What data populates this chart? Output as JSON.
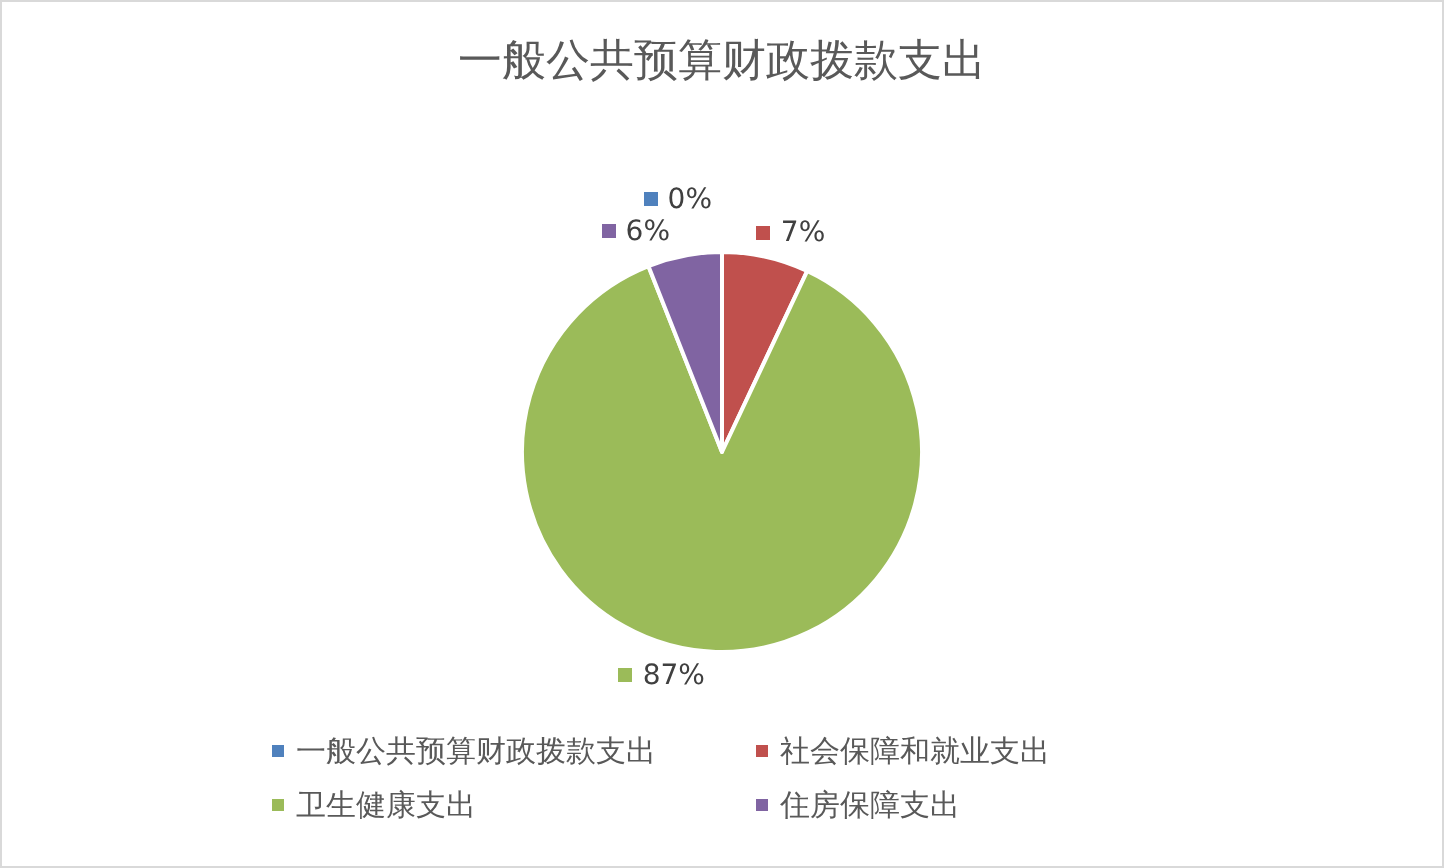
{
  "chart_data": {
    "type": "pie",
    "title": "一般公共预算财政拨款支出",
    "categories": [
      "一般公共预算财政拨款支出",
      "社会保障和就业支出",
      "卫生健康支出",
      "住房保障支出"
    ],
    "values": [
      0,
      7,
      87,
      6
    ],
    "colors": [
      "#4f81bd",
      "#c0504d",
      "#9bbb59",
      "#8064a2"
    ],
    "value_labels": [
      "0%",
      "7%",
      "87%",
      "6%"
    ],
    "legend": "bottom"
  }
}
